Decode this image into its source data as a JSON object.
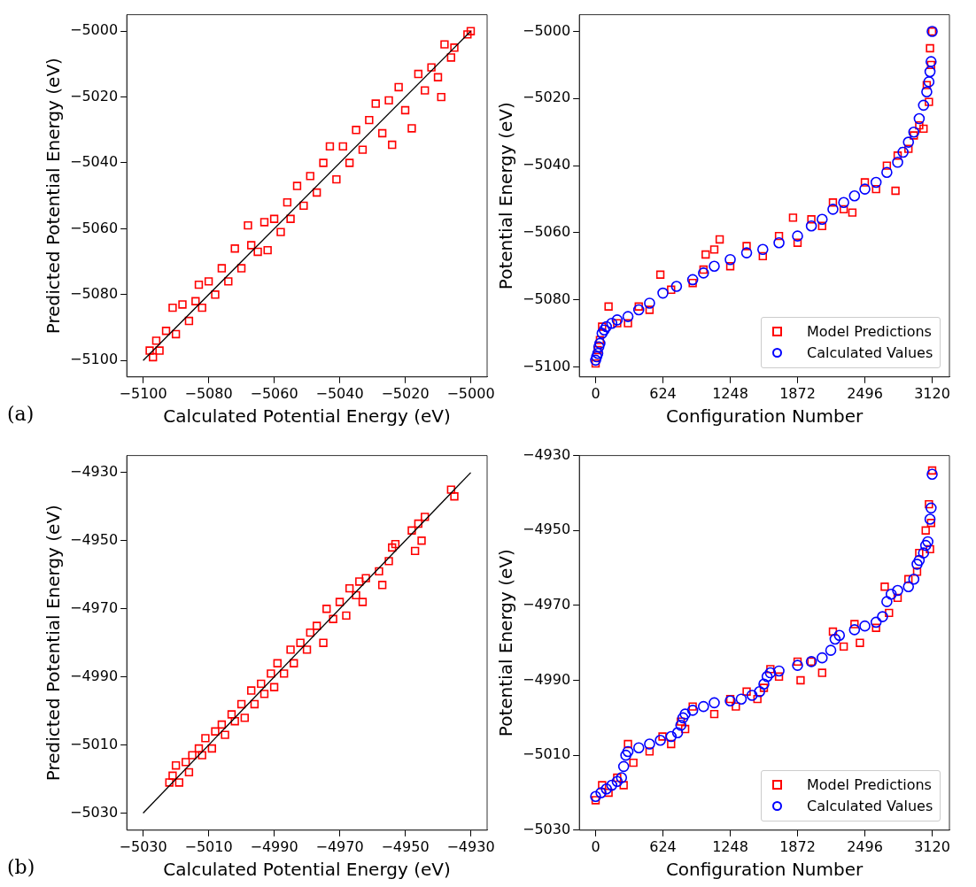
{
  "chart_data": [
    {
      "type": "scatter",
      "xlabel": "Calculated Potential Energy (eV)",
      "ylabel": "Predicted Potential Energy (eV)",
      "xlim": [
        -5105,
        -4995
      ],
      "ylim": [
        -5105,
        -4995
      ],
      "xticks": [
        -5100,
        -5080,
        -5060,
        -5040,
        -5020,
        -5000
      ],
      "yticks": [
        -5100,
        -5080,
        -5060,
        -5040,
        -5020,
        -5000
      ],
      "grid": false,
      "legend": false,
      "annotations": [
        "(a)"
      ],
      "series": [
        {
          "color": "#ff0000",
          "marker": "square",
          "x": [
            -5098,
            -5097,
            -5096,
            -5095,
            -5093,
            -5091,
            -5090,
            -5088,
            -5086,
            -5084,
            -5083,
            -5082,
            -5080,
            -5078,
            -5076,
            -5074,
            -5072,
            -5070,
            -5068,
            -5067,
            -5065,
            -5063,
            -5062,
            -5060,
            -5058,
            -5056,
            -5055,
            -5053,
            -5051,
            -5049,
            -5047,
            -5045,
            -5043,
            -5041,
            -5039,
            -5037,
            -5035,
            -5033,
            -5031,
            -5029,
            -5027,
            -5025,
            -5024,
            -5022,
            -5020,
            -5018,
            -5016,
            -5014,
            -5012,
            -5010,
            -5009,
            -5008,
            -5006,
            -5005,
            -5001,
            -5000
          ],
          "values": [
            -5097,
            -5099,
            -5094,
            -5097,
            -5091,
            -5084,
            -5092,
            -5083,
            -5088,
            -5082,
            -5077,
            -5084,
            -5076,
            -5080,
            -5072,
            -5076,
            -5066,
            -5072,
            -5059,
            -5065,
            -5067,
            -5058,
            -5066.5,
            -5057,
            -5061,
            -5052,
            -5057,
            -5047,
            -5053,
            -5044,
            -5049,
            -5040,
            -5035,
            -5045,
            -5035,
            -5040,
            -5030,
            -5036,
            -5027,
            -5022,
            -5031,
            -5021,
            -5034.5,
            -5017,
            -5024,
            -5029.5,
            -5013,
            -5018,
            -5011,
            -5014,
            -5020,
            -5004,
            -5008,
            -5005,
            -5001,
            -5000
          ]
        },
        {
          "type": "line",
          "color": "#000000",
          "marker": "none",
          "line_style": "solid",
          "x": [
            -5100,
            -5000
          ],
          "values": [
            -5100,
            -5000
          ]
        }
      ]
    },
    {
      "type": "scatter",
      "xlabel": "Configuration Number",
      "ylabel": "Potential Energy (eV)",
      "xlim": [
        -151,
        3280
      ],
      "ylim": [
        -5103,
        -4995
      ],
      "xticks": [
        0,
        624,
        1248,
        1872,
        2496,
        3120
      ],
      "yticks": [
        -5100,
        -5080,
        -5060,
        -5040,
        -5020,
        -5000
      ],
      "grid": false,
      "legend": "bottom right",
      "series": [
        {
          "name": "Model Predictions",
          "color": "#ff0000",
          "marker": "square",
          "x": [
            0,
            20,
            40,
            60,
            120,
            200,
            300,
            400,
            500,
            600,
            700,
            900,
            1000,
            1020,
            1100,
            1150,
            1248,
            1400,
            1550,
            1700,
            1830,
            1872,
            2000,
            2100,
            2200,
            2300,
            2380,
            2496,
            2600,
            2700,
            2780,
            2800,
            2900,
            2950,
            3000,
            3040,
            3070,
            3090,
            3100,
            3110,
            3120
          ],
          "values": [
            -5099,
            -5095,
            -5092,
            -5088,
            -5082,
            -5087,
            -5087,
            -5082,
            -5083,
            -5072.5,
            -5077,
            -5075,
            -5071,
            -5066.5,
            -5065,
            -5062,
            -5070,
            -5064,
            -5067,
            -5061,
            -5055.5,
            -5063,
            -5056,
            -5058,
            -5051,
            -5053,
            -5054,
            -5045,
            -5047,
            -5040,
            -5047.5,
            -5037,
            -5035,
            -5031,
            -5028,
            -5029,
            -5016,
            -5021,
            -5005,
            -5010,
            -5000
          ]
        },
        {
          "name": "Calculated Values",
          "color": "#0000ff",
          "marker": "circle",
          "x": [
            0,
            10,
            20,
            30,
            40,
            60,
            80,
            100,
            150,
            200,
            300,
            400,
            500,
            624,
            750,
            900,
            1000,
            1100,
            1248,
            1400,
            1550,
            1700,
            1872,
            2000,
            2100,
            2200,
            2300,
            2400,
            2496,
            2600,
            2700,
            2800,
            2850,
            2900,
            2950,
            3000,
            3040,
            3070,
            3090,
            3100,
            3110,
            3120
          ],
          "values": [
            -5098,
            -5097,
            -5096,
            -5094,
            -5093,
            -5090,
            -5089,
            -5088,
            -5087,
            -5086,
            -5085,
            -5083,
            -5081,
            -5078,
            -5076,
            -5074,
            -5072,
            -5070,
            -5068,
            -5066,
            -5065,
            -5063,
            -5061,
            -5058,
            -5056,
            -5053,
            -5051,
            -5049,
            -5047,
            -5045,
            -5042,
            -5039,
            -5036,
            -5033,
            -5030,
            -5026,
            -5022,
            -5018,
            -5015,
            -5012,
            -5009,
            -5000
          ]
        }
      ]
    },
    {
      "type": "scatter",
      "xlabel": "Calculated Potential Energy (eV)",
      "ylabel": "Predicted Potential Energy (eV)",
      "xlim": [
        -5035,
        -4925
      ],
      "ylim": [
        -5035,
        -4925
      ],
      "xticks": [
        -5030,
        -5010,
        -4990,
        -4970,
        -4950,
        -4930
      ],
      "yticks": [
        -5030,
        -5010,
        -4990,
        -4970,
        -4950,
        -4930
      ],
      "grid": false,
      "legend": false,
      "annotations": [
        "(b)"
      ],
      "series": [
        {
          "color": "#ff0000",
          "marker": "square",
          "x": [
            -5022,
            -5021,
            -5020,
            -5019,
            -5017,
            -5016,
            -5015,
            -5013,
            -5012,
            -5011,
            -5009,
            -5008,
            -5006,
            -5005,
            -5003,
            -5002,
            -5000,
            -4999,
            -4997,
            -4996,
            -4994,
            -4993,
            -4991,
            -4990,
            -4989,
            -4987,
            -4985,
            -4984,
            -4982,
            -4980,
            -4979,
            -4977,
            -4975,
            -4974,
            -4972,
            -4970,
            -4968,
            -4967,
            -4965,
            -4964,
            -4963,
            -4962,
            -4958,
            -4957,
            -4955,
            -4954,
            -4953,
            -4948,
            -4947,
            -4946,
            -4945,
            -4944,
            -4936,
            -4935
          ],
          "values": [
            -5021,
            -5019,
            -5016,
            -5021,
            -5015,
            -5018,
            -5013,
            -5011,
            -5013,
            -5008,
            -5011,
            -5006,
            -5004,
            -5007,
            -5001,
            -5003,
            -4998,
            -5002,
            -4994,
            -4998,
            -4992,
            -4995,
            -4989,
            -4993,
            -4986,
            -4989,
            -4982,
            -4986,
            -4980,
            -4982,
            -4977,
            -4975,
            -4980,
            -4970,
            -4973,
            -4968,
            -4972,
            -4964,
            -4966,
            -4962,
            -4968,
            -4961,
            -4959,
            -4963,
            -4956,
            -4952,
            -4951,
            -4947,
            -4953,
            -4945,
            -4950,
            -4943,
            -4935,
            -4937
          ]
        },
        {
          "type": "line",
          "color": "#000000",
          "marker": "none",
          "line_style": "solid",
          "x": [
            -5030,
            -4930
          ],
          "values": [
            -5030,
            -4930
          ]
        }
      ]
    },
    {
      "type": "scatter",
      "xlabel": "Configuration Number",
      "ylabel": "Potential Energy (eV)",
      "xlim": [
        -151,
        3280
      ],
      "ylim": [
        -5030,
        -4930
      ],
      "xticks": [
        0,
        624,
        1248,
        1872,
        2496,
        3120
      ],
      "yticks": [
        -5030,
        -5010,
        -4990,
        -4970,
        -4950,
        -4930
      ],
      "grid": false,
      "legend": "bottom right",
      "series": [
        {
          "name": "Model Predictions",
          "color": "#ff0000",
          "marker": "square",
          "x": [
            0,
            60,
            120,
            200,
            260,
            300,
            350,
            500,
            620,
            700,
            790,
            830,
            900,
            1100,
            1248,
            1300,
            1400,
            1500,
            1560,
            1620,
            1700,
            1872,
            1900,
            2000,
            2100,
            2200,
            2300,
            2400,
            2450,
            2600,
            2680,
            2720,
            2800,
            2900,
            2980,
            3000,
            3060,
            3090,
            3100,
            3110,
            3120
          ],
          "values": [
            -5022,
            -5018,
            -5020,
            -5016,
            -5018,
            -5007,
            -5012,
            -5009,
            -5005,
            -5007,
            -5001,
            -5003,
            -4997,
            -4999,
            -4995,
            -4997,
            -4993,
            -4995,
            -4992,
            -4987,
            -4989,
            -4985,
            -4990,
            -4985,
            -4988,
            -4977,
            -4981,
            -4975,
            -4980,
            -4976,
            -4965,
            -4972,
            -4968,
            -4963,
            -4961,
            -4956,
            -4950,
            -4943,
            -4955,
            -4948,
            -4934
          ]
        },
        {
          "name": "Calculated Values",
          "color": "#0000ff",
          "marker": "circle",
          "x": [
            0,
            50,
            100,
            150,
            200,
            240,
            260,
            280,
            300,
            400,
            500,
            600,
            700,
            760,
            790,
            810,
            830,
            900,
            1000,
            1100,
            1248,
            1350,
            1450,
            1520,
            1560,
            1590,
            1620,
            1700,
            1872,
            2000,
            2100,
            2180,
            2220,
            2260,
            2400,
            2496,
            2600,
            2660,
            2700,
            2740,
            2800,
            2900,
            2950,
            2980,
            3000,
            3040,
            3060,
            3080,
            3100,
            3110,
            3120
          ],
          "values": [
            -5021,
            -5020,
            -5019,
            -5018,
            -5017,
            -5016,
            -5013,
            -5010,
            -5009,
            -5008,
            -5007,
            -5006,
            -5005,
            -5004,
            -5002,
            -5000,
            -4999,
            -4998,
            -4997,
            -4996,
            -4995.5,
            -4995,
            -4994,
            -4993,
            -4991,
            -4989,
            -4988,
            -4987.5,
            -4986,
            -4985,
            -4984,
            -4982,
            -4979,
            -4978,
            -4976.5,
            -4975.5,
            -4974.5,
            -4973,
            -4969,
            -4967,
            -4966,
            -4965,
            -4963,
            -4959,
            -4958,
            -4956,
            -4954,
            -4953,
            -4947,
            -4944,
            -4935
          ]
        }
      ]
    }
  ]
}
